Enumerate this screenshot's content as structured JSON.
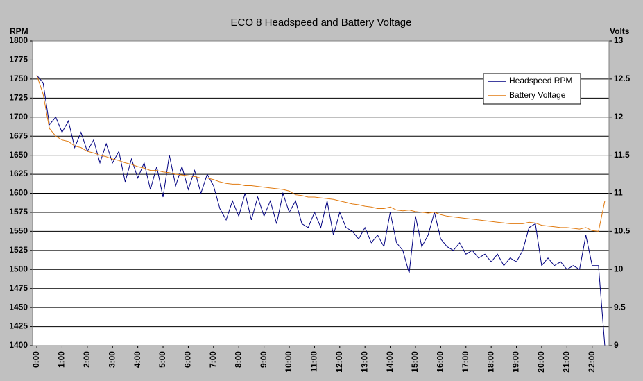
{
  "chart_data": {
    "type": "line",
    "title": "ECO 8 Headspeed and Battery Voltage",
    "y_label": "RPM",
    "y2_label": "Volts",
    "x": [
      0,
      15,
      30,
      45,
      60,
      75,
      90,
      105,
      120,
      135,
      150,
      165,
      180,
      195,
      210,
      225,
      240,
      255,
      270,
      285,
      300,
      315,
      330,
      345,
      360,
      375,
      390,
      405,
      420,
      435,
      450,
      465,
      480,
      495,
      510,
      525,
      540,
      555,
      570,
      585,
      600,
      615,
      630,
      645,
      660,
      675,
      690,
      705,
      720,
      735,
      750,
      765,
      780,
      795,
      810,
      825,
      840,
      855,
      870,
      885,
      900,
      915,
      930,
      945,
      960,
      975,
      990,
      1005,
      1020,
      1035,
      1050,
      1065,
      1080,
      1095,
      1110,
      1125,
      1140,
      1155,
      1170,
      1185,
      1200,
      1215,
      1230,
      1245,
      1260,
      1275,
      1290,
      1305,
      1320,
      1335,
      1350
    ],
    "series": [
      {
        "name": "Headspeed RPM",
        "color": "#000080",
        "axis": "y",
        "values": [
          1755,
          1745,
          1690,
          1700,
          1680,
          1695,
          1660,
          1680,
          1655,
          1670,
          1640,
          1665,
          1640,
          1655,
          1615,
          1645,
          1620,
          1640,
          1605,
          1635,
          1595,
          1650,
          1610,
          1635,
          1605,
          1630,
          1600,
          1625,
          1610,
          1580,
          1565,
          1590,
          1570,
          1600,
          1565,
          1595,
          1570,
          1590,
          1560,
          1600,
          1575,
          1590,
          1560,
          1555,
          1575,
          1555,
          1590,
          1545,
          1575,
          1555,
          1550,
          1540,
          1555,
          1535,
          1545,
          1530,
          1575,
          1535,
          1525,
          1495,
          1570,
          1530,
          1545,
          1575,
          1540,
          1530,
          1525,
          1535,
          1520,
          1525,
          1515,
          1520,
          1510,
          1520,
          1505,
          1515,
          1510,
          1525,
          1555,
          1560,
          1505,
          1515,
          1505,
          1510,
          1500,
          1505,
          1500,
          1545,
          1505,
          1505,
          1400
        ]
      },
      {
        "name": "Battery Voltage",
        "color": "#e07a10",
        "axis": "y2",
        "values": [
          12.55,
          12.3,
          11.85,
          11.75,
          11.7,
          11.68,
          11.62,
          11.6,
          11.55,
          11.53,
          11.5,
          11.48,
          11.45,
          11.43,
          11.4,
          11.38,
          11.35,
          11.33,
          11.3,
          11.3,
          11.28,
          11.27,
          11.25,
          11.24,
          11.23,
          11.22,
          11.2,
          11.2,
          11.18,
          11.15,
          11.13,
          11.12,
          11.12,
          11.1,
          11.1,
          11.09,
          11.08,
          11.07,
          11.06,
          11.05,
          11.03,
          10.98,
          10.97,
          10.95,
          10.95,
          10.94,
          10.93,
          10.92,
          10.9,
          10.88,
          10.86,
          10.85,
          10.83,
          10.82,
          10.8,
          10.8,
          10.82,
          10.78,
          10.77,
          10.78,
          10.76,
          10.75,
          10.74,
          10.75,
          10.72,
          10.7,
          10.69,
          10.68,
          10.67,
          10.66,
          10.65,
          10.64,
          10.63,
          10.62,
          10.61,
          10.6,
          10.6,
          10.6,
          10.62,
          10.61,
          10.58,
          10.57,
          10.56,
          10.55,
          10.55,
          10.54,
          10.53,
          10.55,
          10.51,
          10.5,
          10.9
        ]
      }
    ],
    "xlim": [
      -10,
      1360
    ],
    "xticks": [
      {
        "value": 0,
        "label": "0:00"
      },
      {
        "value": 60,
        "label": "1:00"
      },
      {
        "value": 120,
        "label": "2:00"
      },
      {
        "value": 180,
        "label": "3:00"
      },
      {
        "value": 240,
        "label": "4:00"
      },
      {
        "value": 300,
        "label": "5:00"
      },
      {
        "value": 360,
        "label": "6:00"
      },
      {
        "value": 420,
        "label": "7:00"
      },
      {
        "value": 480,
        "label": "8:00"
      },
      {
        "value": 540,
        "label": "9:00"
      },
      {
        "value": 600,
        "label": "10:00"
      },
      {
        "value": 660,
        "label": "11:00"
      },
      {
        "value": 720,
        "label": "12:00"
      },
      {
        "value": 780,
        "label": "13:00"
      },
      {
        "value": 840,
        "label": "14:00"
      },
      {
        "value": 900,
        "label": "15:00"
      },
      {
        "value": 960,
        "label": "16:00"
      },
      {
        "value": 1020,
        "label": "17:00"
      },
      {
        "value": 1080,
        "label": "18:00"
      },
      {
        "value": 1140,
        "label": "19:00"
      },
      {
        "value": 1200,
        "label": "20:00"
      },
      {
        "value": 1260,
        "label": "21:00"
      },
      {
        "value": 1320,
        "label": "22:00"
      }
    ],
    "ylim": [
      1400,
      1800
    ],
    "yticks": [
      1400,
      1425,
      1450,
      1475,
      1500,
      1525,
      1550,
      1575,
      1600,
      1625,
      1650,
      1675,
      1700,
      1725,
      1750,
      1775,
      1800
    ],
    "y2lim": [
      9,
      13
    ],
    "y2ticks": [
      9,
      9.5,
      10,
      10.5,
      11,
      11.5,
      12,
      12.5,
      13
    ],
    "grid": true,
    "legend": "upper right"
  }
}
